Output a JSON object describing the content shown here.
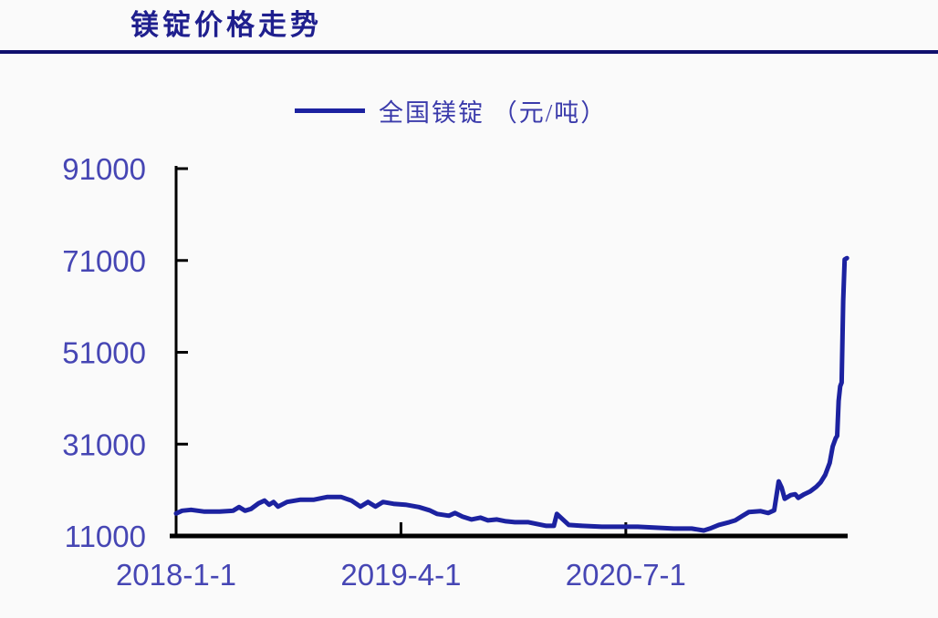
{
  "header": {
    "title": "镁锭价格走势"
  },
  "legend": {
    "label": "全国镁锭 （元/吨）"
  },
  "chart_data": {
    "type": "line",
    "title": "镁锭价格走势",
    "legend_position": "top-center",
    "grid": false,
    "x_unit": "months since 2018-1-1",
    "xlim": [
      0,
      44.8
    ],
    "ylim": [
      11000,
      91000
    ],
    "y_ticks": [
      11000,
      31000,
      51000,
      71000,
      91000
    ],
    "x_ticks": [
      {
        "t": 0,
        "label": "2018-1-1"
      },
      {
        "t": 15,
        "label": "2019-4-1"
      },
      {
        "t": 30,
        "label": "2020-7-1"
      }
    ],
    "colors": {
      "line": "#1c22a0",
      "axis": "#000000",
      "tick_label": "#4646b4",
      "title": "#1f1f8e",
      "rule": "#10106e",
      "legend_label": "#3b3bab"
    },
    "series": [
      {
        "name": "全国镁锭",
        "unit": "元/吨",
        "points": [
          [
            0.0,
            15900
          ],
          [
            0.4,
            16500
          ],
          [
            1.0,
            16700
          ],
          [
            1.9,
            16300
          ],
          [
            2.9,
            16300
          ],
          [
            3.8,
            16500
          ],
          [
            4.2,
            17300
          ],
          [
            4.6,
            16500
          ],
          [
            5.0,
            16900
          ],
          [
            5.5,
            18100
          ],
          [
            5.9,
            18700
          ],
          [
            6.2,
            17800
          ],
          [
            6.5,
            18400
          ],
          [
            6.8,
            17400
          ],
          [
            7.4,
            18400
          ],
          [
            8.3,
            18900
          ],
          [
            9.2,
            18900
          ],
          [
            10.1,
            19500
          ],
          [
            11.0,
            19500
          ],
          [
            11.7,
            18700
          ],
          [
            12.3,
            17400
          ],
          [
            12.8,
            18400
          ],
          [
            13.3,
            17400
          ],
          [
            13.8,
            18400
          ],
          [
            14.5,
            18000
          ],
          [
            15.3,
            17800
          ],
          [
            16.2,
            17300
          ],
          [
            16.9,
            16600
          ],
          [
            17.4,
            15800
          ],
          [
            18.2,
            15400
          ],
          [
            18.6,
            16000
          ],
          [
            19.1,
            15200
          ],
          [
            19.7,
            14600
          ],
          [
            20.3,
            15000
          ],
          [
            20.8,
            14400
          ],
          [
            21.4,
            14600
          ],
          [
            22.0,
            14200
          ],
          [
            22.6,
            14000
          ],
          [
            23.5,
            14000
          ],
          [
            24.1,
            13600
          ],
          [
            24.7,
            13200
          ],
          [
            25.2,
            13200
          ],
          [
            25.4,
            15800
          ],
          [
            25.8,
            14600
          ],
          [
            26.2,
            13400
          ],
          [
            27.1,
            13200
          ],
          [
            28.4,
            13000
          ],
          [
            29.8,
            13000
          ],
          [
            30.8,
            13000
          ],
          [
            32.0,
            12800
          ],
          [
            33.2,
            12600
          ],
          [
            34.4,
            12600
          ],
          [
            35.2,
            12200
          ],
          [
            35.6,
            12600
          ],
          [
            36.2,
            13400
          ],
          [
            36.9,
            14000
          ],
          [
            37.3,
            14400
          ],
          [
            37.8,
            15400
          ],
          [
            38.2,
            16200
          ],
          [
            39.0,
            16400
          ],
          [
            39.5,
            16000
          ],
          [
            39.9,
            16600
          ],
          [
            40.2,
            22900
          ],
          [
            40.4,
            21500
          ],
          [
            40.6,
            19100
          ],
          [
            41.0,
            19900
          ],
          [
            41.3,
            20100
          ],
          [
            41.5,
            19300
          ],
          [
            41.9,
            20100
          ],
          [
            42.3,
            20700
          ],
          [
            42.7,
            21700
          ],
          [
            43.0,
            22700
          ],
          [
            43.3,
            24300
          ],
          [
            43.6,
            26900
          ],
          [
            43.8,
            30500
          ],
          [
            44.0,
            32300
          ],
          [
            44.1,
            32800
          ],
          [
            44.2,
            40400
          ],
          [
            44.3,
            43600
          ],
          [
            44.4,
            44400
          ],
          [
            44.5,
            62200
          ],
          [
            44.6,
            71200
          ],
          [
            44.75,
            71500
          ]
        ]
      }
    ]
  }
}
